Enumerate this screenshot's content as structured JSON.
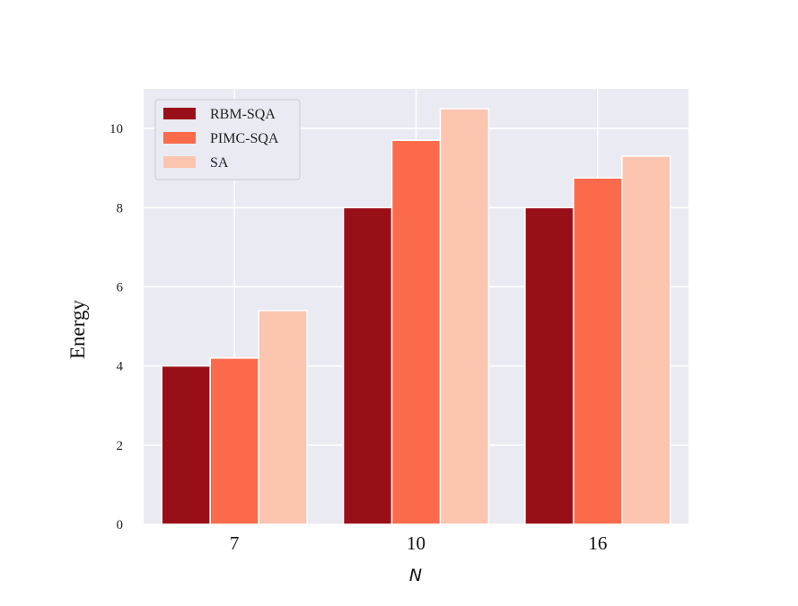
{
  "chart_data": {
    "type": "bar",
    "categories": [
      "7",
      "10",
      "16"
    ],
    "series": [
      {
        "name": "RBM-SQA",
        "values": [
          4.0,
          8.0,
          8.0
        ],
        "color": "#990f17"
      },
      {
        "name": "PIMC-SQA",
        "values": [
          4.2,
          9.7,
          8.75
        ],
        "color": "#fb6a4a"
      },
      {
        "name": "SA",
        "values": [
          5.4,
          10.5,
          9.3
        ],
        "color": "#fcc5b0"
      }
    ],
    "xlabel": "N",
    "ylabel": "Energy",
    "ylim": [
      0,
      11
    ],
    "yticks": [
      "0",
      "2",
      "4",
      "6",
      "8",
      "10"
    ],
    "grid": true,
    "legend_position": "upper-left",
    "background_color": "#eaeaf2"
  }
}
